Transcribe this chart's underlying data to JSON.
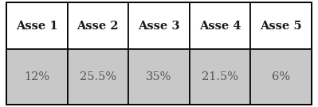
{
  "headers": [
    "Asse 1",
    "Asse 2",
    "Asse 3",
    "Asse 4",
    "Asse 5"
  ],
  "values": [
    "12%",
    "25.5%",
    "35%",
    "21.5%",
    "6%"
  ],
  "header_bg": "#ffffff",
  "value_bg": "#c8c8c8",
  "border_color": "#000000",
  "outer_bg": "#ffffff",
  "header_text_color": "#1a1a1a",
  "value_text_color": "#555555",
  "header_fontsize": 10.5,
  "value_fontsize": 10.5,
  "fig_width": 3.99,
  "fig_height": 1.35,
  "dpi": 100
}
